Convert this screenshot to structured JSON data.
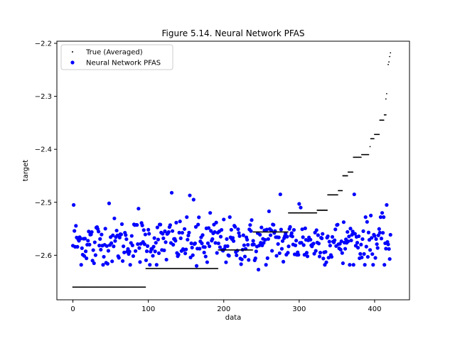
{
  "chart_data": {
    "type": "scatter",
    "title": "Figure 5.14. Neural Network PFAS",
    "xlabel": "data",
    "ylabel": "target",
    "xlim": [
      -21.25,
      446.25
    ],
    "ylim": [
      -2.684,
      -2.196
    ],
    "xticks": [
      0,
      100,
      200,
      300,
      400
    ],
    "yticks": [
      -2.6,
      -2.5,
      -2.4,
      -2.3,
      -2.2
    ],
    "xtick_labels": [
      "0",
      "100",
      "200",
      "300",
      "400"
    ],
    "ytick_labels": [
      "−2.6",
      "−2.5",
      "−2.4",
      "−2.3",
      "−2.2"
    ],
    "legend": {
      "position": "top-left",
      "entries": [
        "True (Averaged)",
        "Neural Network PFAS"
      ]
    },
    "colors": {
      "true": "#000000",
      "nn": "#0000ff"
    },
    "true_segments": [
      {
        "x_start": 0,
        "x_end": 96,
        "y": -2.66
      },
      {
        "x_start": 97,
        "x_end": 192,
        "y": -2.625
      },
      {
        "x_start": 193,
        "x_end": 238,
        "y": -2.59
      },
      {
        "x_start": 239,
        "x_end": 285,
        "y": -2.556
      },
      {
        "x_start": 286,
        "x_end": 323,
        "y": -2.52
      },
      {
        "x_start": 324,
        "x_end": 337,
        "y": -2.515
      },
      {
        "x_start": 338,
        "x_end": 351,
        "y": -2.486
      },
      {
        "x_start": 352,
        "x_end": 357,
        "y": -2.478
      },
      {
        "x_start": 358,
        "x_end": 364,
        "y": -2.45
      },
      {
        "x_start": 365,
        "x_end": 371,
        "y": -2.443
      },
      {
        "x_start": 372,
        "x_end": 382,
        "y": -2.415
      },
      {
        "x_start": 383,
        "x_end": 392,
        "y": -2.41
      },
      {
        "x_start": 395,
        "x_end": 399,
        "y": -2.38
      },
      {
        "x_start": 400,
        "x_end": 406,
        "y": -2.372
      },
      {
        "x_start": 407,
        "x_end": 412,
        "y": -2.345
      },
      {
        "x_start": 413,
        "x_end": 415,
        "y": -2.335
      }
    ],
    "true_points": [
      {
        "x": 394,
        "y": -2.395
      },
      {
        "x": 415,
        "y": -2.305
      },
      {
        "x": 416,
        "y": -2.295
      },
      {
        "x": 418,
        "y": -2.24
      },
      {
        "x": 419,
        "y": -2.235
      },
      {
        "x": 420,
        "y": -2.225
      },
      {
        "x": 421,
        "y": -2.218
      }
    ],
    "nn_highlights": [
      {
        "x": 1,
        "y": -2.505
      },
      {
        "x": 48,
        "y": -2.502
      },
      {
        "x": 87,
        "y": -2.512
      },
      {
        "x": 131,
        "y": -2.482
      },
      {
        "x": 155,
        "y": -2.487
      },
      {
        "x": 160,
        "y": -2.495
      },
      {
        "x": 164,
        "y": -2.62
      },
      {
        "x": 178,
        "y": -2.613
      },
      {
        "x": 26,
        "y": -2.61
      },
      {
        "x": 28,
        "y": -2.615
      },
      {
        "x": 182,
        "y": -2.52
      },
      {
        "x": 246,
        "y": -2.627
      },
      {
        "x": 260,
        "y": -2.517
      },
      {
        "x": 275,
        "y": -2.485
      },
      {
        "x": 300,
        "y": -2.503
      },
      {
        "x": 302,
        "y": -2.51
      },
      {
        "x": 358,
        "y": -2.615
      },
      {
        "x": 373,
        "y": -2.485
      },
      {
        "x": 416,
        "y": -2.505
      },
      {
        "x": 420,
        "y": -2.607
      },
      {
        "x": 410,
        "y": -2.52
      },
      {
        "x": 395,
        "y": -2.525
      }
    ],
    "nn_series": {
      "count": 422,
      "x_start": 0,
      "y_mean": -2.575,
      "y_spread": 0.022,
      "note": "blue scatter points, one per data index 0..421, clustered around -2.575"
    }
  }
}
